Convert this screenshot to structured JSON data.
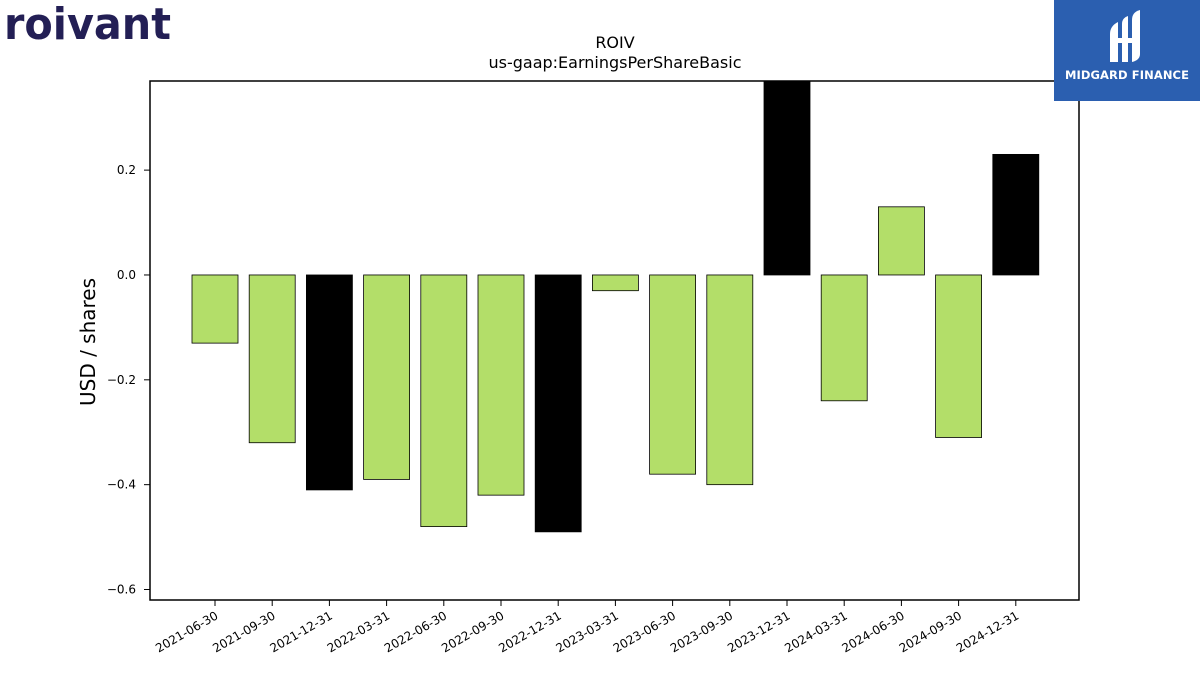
{
  "branding": {
    "left_logo_text": "roivant",
    "left_logo_color": "#231f55",
    "right_logo_text": "MIDGARD FINANCE",
    "right_logo_bg": "#2b5fb0"
  },
  "chart_data": {
    "type": "bar",
    "title": "ROIV",
    "subtitle": "us-gaap:EarningsPerShareBasic",
    "xlabel": "",
    "ylabel": "USD / shares",
    "categories": [
      "2021-06-30",
      "2021-09-30",
      "2021-12-31",
      "2022-03-31",
      "2022-06-30",
      "2022-09-30",
      "2022-12-31",
      "2023-03-31",
      "2023-06-30",
      "2023-09-30",
      "2023-12-31",
      "2024-03-31",
      "2024-06-30",
      "2024-09-30",
      "2024-12-31"
    ],
    "values": [
      -0.13,
      -0.32,
      -0.41,
      -0.39,
      -0.48,
      -0.42,
      -0.49,
      -0.03,
      -0.38,
      -0.4,
      0.37,
      -0.24,
      0.13,
      -0.31,
      0.23
    ],
    "bar_colors": [
      "#b3de69",
      "#b3de69",
      "#000000",
      "#b3de69",
      "#b3de69",
      "#b3de69",
      "#000000",
      "#b3de69",
      "#b3de69",
      "#b3de69",
      "#000000",
      "#b3de69",
      "#b3de69",
      "#b3de69",
      "#000000"
    ],
    "yticks": [
      0.2,
      0.0,
      -0.2,
      -0.4,
      -0.6
    ],
    "ytick_labels": [
      "0.2",
      "0.0",
      "−0.2",
      "−0.4",
      "−0.6"
    ],
    "ylim": [
      -0.62,
      0.37
    ],
    "grid": false,
    "legend": "none"
  }
}
